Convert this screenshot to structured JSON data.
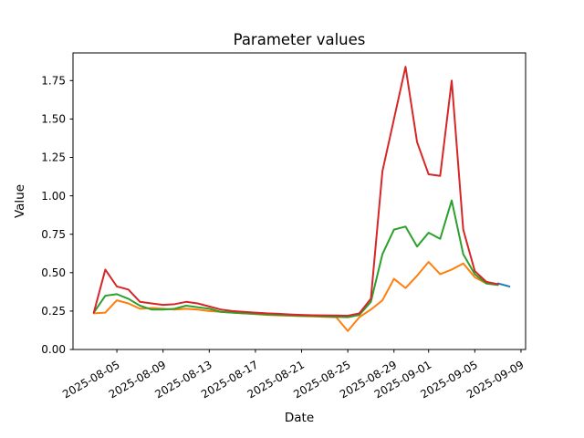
{
  "chart_data": {
    "type": "line",
    "title": "Parameter values",
    "xlabel": "Date",
    "ylabel": "Value",
    "grid": false,
    "legend": null,
    "axis_color": "#000000",
    "background_color": "#ffffff",
    "ylim": [
      0,
      1.93
    ],
    "y_ticks": [
      0.0,
      0.25,
      0.5,
      0.75,
      1.0,
      1.25,
      1.5,
      1.75
    ],
    "x_ticks": [
      "2025-08-05",
      "2025-08-09",
      "2025-08-13",
      "2025-08-17",
      "2025-08-21",
      "2025-08-25",
      "2025-08-29",
      "2025-09-01",
      "2025-09-05",
      "2025-09-09"
    ],
    "x": [
      "2025-08-03",
      "2025-08-04",
      "2025-08-05",
      "2025-08-06",
      "2025-08-07",
      "2025-08-08",
      "2025-08-09",
      "2025-08-10",
      "2025-08-11",
      "2025-08-12",
      "2025-08-13",
      "2025-08-14",
      "2025-08-15",
      "2025-08-16",
      "2025-08-17",
      "2025-08-18",
      "2025-08-19",
      "2025-08-20",
      "2025-08-21",
      "2025-08-22",
      "2025-08-23",
      "2025-08-24",
      "2025-08-25",
      "2025-08-26",
      "2025-08-27",
      "2025-08-28",
      "2025-08-29",
      "2025-08-30",
      "2025-08-31",
      "2025-09-01",
      "2025-09-02",
      "2025-09-03",
      "2025-09-04",
      "2025-09-05",
      "2025-09-06",
      "2025-09-07",
      "2025-09-08"
    ],
    "series": [
      {
        "name": "series-1-blue",
        "color": "#1f77b4",
        "values": [
          null,
          null,
          null,
          null,
          null,
          null,
          null,
          null,
          null,
          null,
          null,
          null,
          null,
          null,
          null,
          null,
          null,
          null,
          null,
          null,
          null,
          null,
          null,
          null,
          null,
          null,
          null,
          null,
          null,
          null,
          null,
          null,
          null,
          null,
          null,
          0.43,
          0.41
        ]
      },
      {
        "name": "series-2-orange",
        "color": "#ff7f0e",
        "values": [
          0.235,
          0.24,
          0.32,
          0.3,
          0.265,
          0.27,
          0.265,
          0.26,
          0.265,
          0.26,
          0.25,
          0.245,
          0.24,
          0.235,
          0.23,
          0.225,
          0.222,
          0.22,
          0.217,
          0.215,
          0.212,
          0.21,
          0.12,
          0.21,
          0.26,
          0.32,
          0.46,
          0.4,
          0.48,
          0.57,
          0.49,
          0.52,
          0.56,
          0.47,
          0.43,
          0.42,
          null
        ]
      },
      {
        "name": "series-3-green",
        "color": "#2ca02c",
        "values": [
          0.24,
          0.35,
          0.36,
          0.33,
          0.285,
          0.26,
          0.26,
          0.265,
          0.285,
          0.275,
          0.265,
          0.245,
          0.24,
          0.235,
          0.232,
          0.228,
          0.225,
          0.222,
          0.22,
          0.218,
          0.215,
          0.212,
          0.21,
          0.225,
          0.31,
          0.62,
          0.78,
          0.8,
          0.67,
          0.76,
          0.72,
          0.97,
          0.62,
          0.49,
          0.43,
          0.42,
          null
        ]
      },
      {
        "name": "series-4-red",
        "color": "#d62728",
        "values": [
          0.24,
          0.52,
          0.41,
          0.39,
          0.31,
          0.3,
          0.29,
          0.295,
          0.31,
          0.3,
          0.28,
          0.26,
          0.25,
          0.245,
          0.24,
          0.235,
          0.232,
          0.228,
          0.225,
          0.223,
          0.222,
          0.221,
          0.22,
          0.235,
          0.33,
          1.16,
          1.5,
          1.84,
          1.35,
          1.14,
          1.13,
          1.75,
          0.78,
          0.51,
          0.44,
          0.425,
          null
        ]
      }
    ]
  }
}
